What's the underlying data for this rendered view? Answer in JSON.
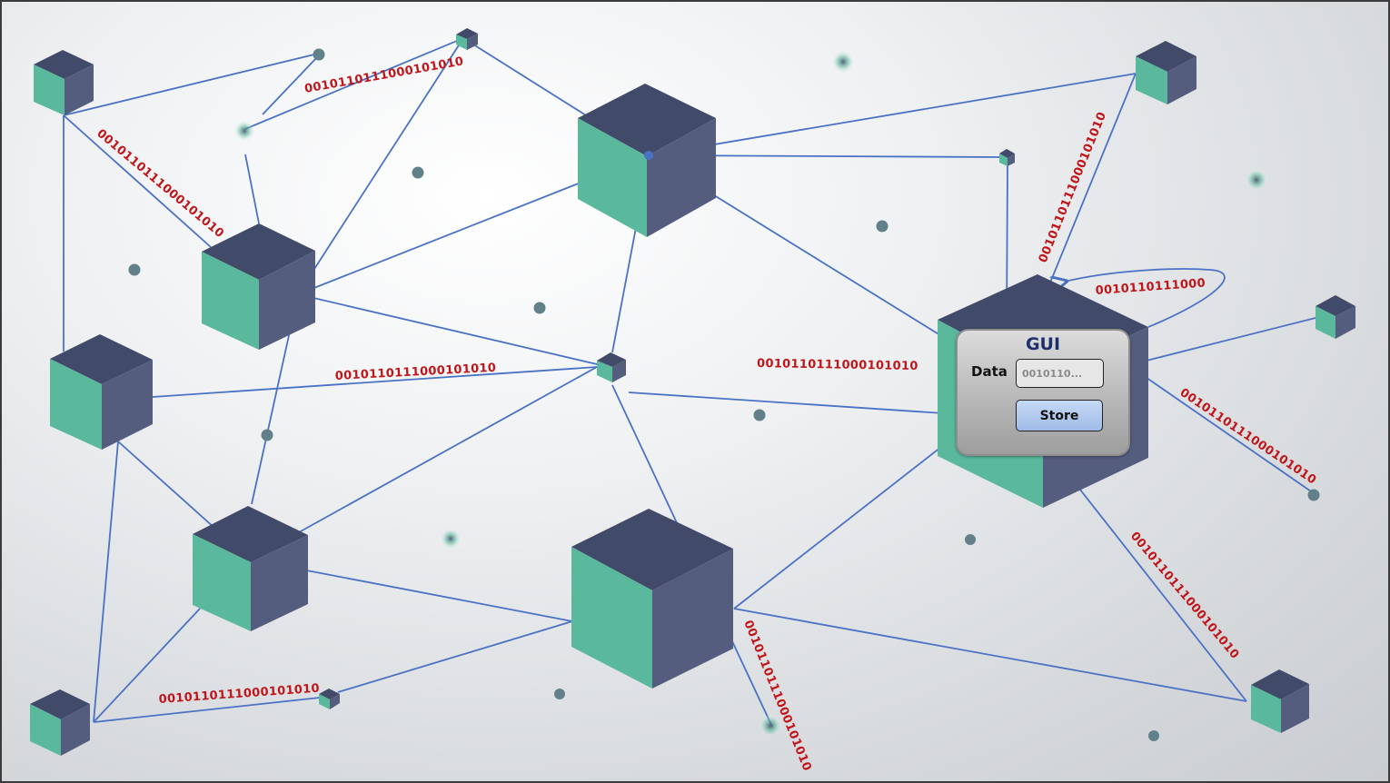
{
  "colors": {
    "link": "#4a72c4",
    "cube_top": "#424a6a",
    "cube_left": "#5ab89d",
    "cube_right": "#555d7f",
    "dot": "#62808a",
    "binary_text": "#c0161a",
    "gui_title": "#1e2f6b"
  },
  "binary_labels": {
    "top_center": "0010110111000101010",
    "top_left_diag": "0010110111000101010",
    "mid_left": "0010110111000101010",
    "mid_center": "0010110111000101010",
    "bottom_left": "0010110111000101010",
    "bottom_center_diag": "0010110111000101010",
    "right_top_vertical": "0010110111000101010",
    "right_diag": "0010110111000101010",
    "right_lower_diag": "0010110111000101010",
    "loop": "0010110111000"
  },
  "gui": {
    "title": "GUI",
    "data_label": "Data",
    "data_value": "0010110...",
    "store_label": "Store"
  }
}
